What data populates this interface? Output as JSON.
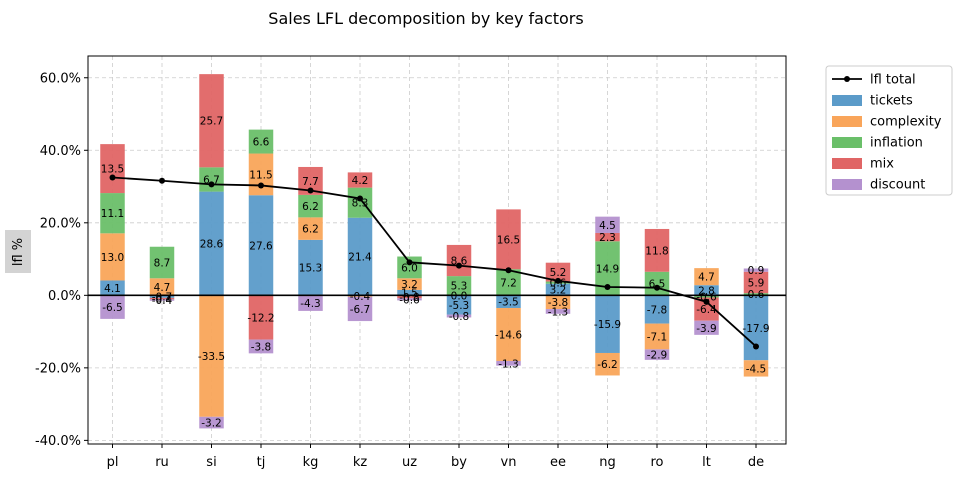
{
  "chart_data": {
    "type": "bar",
    "stacked": true,
    "title": "Sales LFL decomposition by key factors",
    "ylabel": "lfl %",
    "xlabel": "",
    "ylim": [
      -41,
      66
    ],
    "yticks": [
      -40,
      -20,
      0,
      20,
      40,
      60
    ],
    "ytick_labels": [
      "-40.0%",
      "-20.0%",
      "0.0%",
      "20.0%",
      "40.0%",
      "60.0%"
    ],
    "grid": true,
    "legend_position": "outside-top-right",
    "categories": [
      "pl",
      "ru",
      "si",
      "tj",
      "kg",
      "kz",
      "uz",
      "by",
      "vn",
      "ee",
      "ng",
      "ro",
      "lt",
      "de"
    ],
    "series": [
      {
        "name": "tickets",
        "color": "#5b9bc9",
        "values": [
          4.1,
          -0.7,
          28.6,
          27.6,
          15.3,
          21.4,
          1.5,
          -5.3,
          -3.5,
          3.2,
          -15.9,
          -7.8,
          2.8,
          -17.9
        ],
        "labels": [
          "4.1",
          "-0.7",
          "28.6",
          "27.6",
          "15.3",
          "21.4",
          "1.5",
          "-5.3",
          "-3.5",
          "3.2",
          "-15.9",
          "-7.8",
          "2.8",
          "-17.9"
        ]
      },
      {
        "name": "complexity",
        "color": "#f9a55a",
        "values": [
          13.0,
          4.7,
          -33.5,
          11.5,
          6.2,
          -0.4,
          3.2,
          0.0,
          -14.6,
          -3.8,
          -6.2,
          -7.1,
          4.7,
          -4.5
        ],
        "labels": [
          "13.0",
          "4.7",
          "-33.5",
          "11.5",
          "6.2",
          "-0.4",
          "3.2",
          "0.0",
          "-14.6",
          "-3.8",
          "-6.2",
          "-7.1",
          "4.7",
          "-4.5"
        ]
      },
      {
        "name": "inflation",
        "color": "#6abf69",
        "values": [
          11.1,
          8.7,
          6.7,
          6.6,
          6.2,
          8.3,
          6.0,
          5.3,
          7.2,
          0.6,
          14.9,
          6.5,
          -0.6,
          0.6
        ],
        "labels": [
          "11.1",
          "8.7",
          "6.7",
          "6.6",
          "6.2",
          "8.3",
          "6.0",
          "5.3",
          "7.2",
          "0.6",
          "14.9",
          "6.5",
          "-0.6",
          "0.6"
        ]
      },
      {
        "name": "mix",
        "color": "#e06565",
        "values": [
          13.5,
          -0.4,
          25.7,
          -12.2,
          7.7,
          4.2,
          -0.8,
          8.6,
          16.5,
          5.2,
          2.3,
          11.8,
          -6.4,
          5.9
        ],
        "labels": [
          "13.5",
          "-0.4",
          "25.7",
          "-12.2",
          "7.7",
          "4.2",
          "-0.8",
          "8.6",
          "16.5",
          "5.2",
          "2.3",
          "11.8",
          "-6.4",
          "5.9"
        ]
      },
      {
        "name": "discount",
        "color": "#b491cf",
        "values": [
          -6.5,
          -0.4,
          -3.2,
          -3.8,
          -4.3,
          -6.7,
          -0.6,
          -0.8,
          -1.3,
          -1.3,
          4.5,
          -2.9,
          -3.9,
          0.9
        ],
        "labels": [
          "-6.5",
          "-0.4",
          "-3.2",
          "-3.8",
          "-4.3",
          "-6.7",
          "-0.6",
          "-0.8",
          "-1.3",
          "-1.3",
          "4.5",
          "-2.9",
          "-3.9",
          "0.9"
        ]
      }
    ],
    "line": {
      "name": "lfl total",
      "color": "#000000",
      "values": [
        32.5,
        31.6,
        30.6,
        30.3,
        28.9,
        26.7,
        9.1,
        8.2,
        6.9,
        4.0,
        2.3,
        2.1,
        -1.8,
        -14.1
      ]
    }
  }
}
